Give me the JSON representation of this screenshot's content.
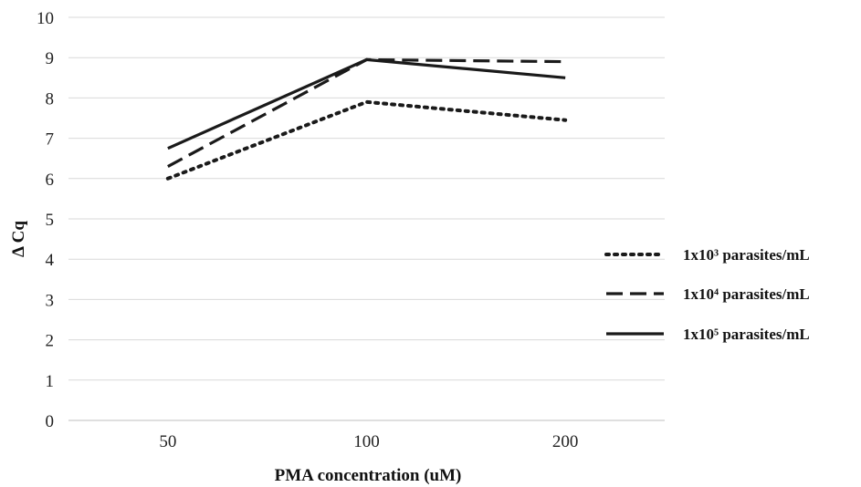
{
  "chart_data": {
    "type": "line",
    "title": "",
    "xlabel": "PMA concentration (uM)",
    "ylabel": "Δ Cq",
    "categories": [
      "50",
      "100",
      "200"
    ],
    "ylim": [
      0,
      10
    ],
    "yticks": [
      "0",
      "1",
      "2",
      "3",
      "4",
      "5",
      "6",
      "7",
      "8",
      "9",
      "10"
    ],
    "grid": true,
    "legend_position": "right",
    "series": [
      {
        "name": "1x10³ parasites/mL",
        "values": [
          6.0,
          7.9,
          7.45
        ],
        "style": "dotted",
        "color": "#1a1a1a"
      },
      {
        "name": "1x10⁴ parasites/mL",
        "values": [
          6.3,
          8.95,
          8.9
        ],
        "style": "dashed",
        "color": "#1a1a1a"
      },
      {
        "name": "1x10⁵ parasites/mL",
        "values": [
          6.75,
          8.95,
          8.5
        ],
        "style": "solid",
        "color": "#1a1a1a"
      }
    ]
  }
}
